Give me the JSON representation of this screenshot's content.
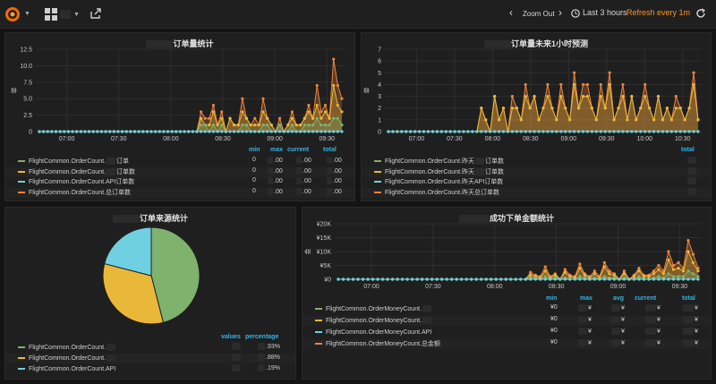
{
  "topbar": {
    "zoom_out_label": "Zoom Out",
    "time_range_label": "Last 3 hours",
    "refresh_label": "Refresh every 1m",
    "prev_label": "‹",
    "next_label": "›"
  },
  "colors": {
    "green": "#7eb26d",
    "yellow": "#eab839",
    "cyan": "#6ed0e0",
    "orange": "#ef843c",
    "accent_blue": "#33b5e5"
  },
  "panels": {
    "order_stats": {
      "title": "订单量统计",
      "ylabel": "单",
      "legend_headers": [
        "min",
        "max",
        "current",
        "total"
      ],
      "legend": [
        {
          "label": "FlightCommon.OrderCount.",
          "label_tail": "订单",
          "min": "0",
          "max": ".00",
          "current": ".00",
          "total": ".00"
        },
        {
          "label": "FlightCommon.OrderCount.",
          "label_tail": "订单数",
          "min": "0",
          "max": ".00",
          "current": ".00",
          "total": ".00"
        },
        {
          "label": "FlightCommon.OrderCount.API订单数",
          "label_tail": "",
          "min": "0",
          "max": ".00",
          "current": ".00",
          "total": ".00"
        },
        {
          "label": "FlightCommon.OrderCount.总订单数",
          "label_tail": "",
          "min": "0",
          "max": ".00",
          "current": ".00",
          "total": ".00"
        }
      ]
    },
    "forecast": {
      "title": "订单量未来1小时预测",
      "ylabel": "单",
      "legend_headers": [
        "total"
      ],
      "legend": [
        {
          "label": "FlightCommon.OrderCount.昨天",
          "label_tail": "订单数"
        },
        {
          "label": "FlightCommon.OrderCount.昨天",
          "label_tail": "订单数"
        },
        {
          "label": "FlightCommon.OrderCount.昨天API订单数",
          "label_tail": ""
        },
        {
          "label": "FlightCommon.OrderCount.昨天总订单数",
          "label_tail": ""
        }
      ]
    },
    "source_pie": {
      "title": "订单来源统计",
      "legend_headers": [
        "values",
        "percentage"
      ],
      "legend": [
        {
          "label": "FlightCommon.OrderCount.",
          "pct": ".93%"
        },
        {
          "label": "FlightCommon.OrderCount.",
          "pct": ".88%"
        },
        {
          "label": "FlightCommon.OrderCount.API",
          "pct": ".19%"
        }
      ]
    },
    "money": {
      "title": "成功下单金额统计",
      "ylabel": "金",
      "legend_headers": [
        "min",
        "max",
        "avg",
        "current",
        "total"
      ],
      "legend": [
        {
          "label": "FlightCommon.OrderMoneyCount.",
          "min": "¥0",
          "max": "¥",
          "avg": "¥",
          "current": "¥",
          "total": "¥"
        },
        {
          "label": "FlightCommon.OrderMoneyCount.",
          "min": "¥0",
          "max": "¥",
          "avg": "¥",
          "current": "¥",
          "total": "¥"
        },
        {
          "label": "FlightCommon.OrderMoneyCount.API",
          "min": "¥0",
          "max": "¥",
          "avg": "¥",
          "current": "¥",
          "total": "¥"
        },
        {
          "label": "FlightCommon.OrderMoneyCount.总金额",
          "min": "¥0",
          "max": "¥",
          "avg": "¥",
          "current": "¥",
          "total": "¥"
        }
      ]
    }
  },
  "chart_data": [
    {
      "id": "order_stats",
      "type": "area",
      "title": "订单量统计",
      "ylabel": "单",
      "ylim": [
        0,
        12.5
      ],
      "yticks": [
        0,
        2.5,
        5.0,
        7.5,
        10.0,
        12.5
      ],
      "ytick_labels": [
        "0",
        "2.5",
        "5.0",
        "7.5",
        "10.0",
        "12.5"
      ],
      "xticks": [
        "07:00",
        "07:30",
        "08:00",
        "08:30",
        "09:00",
        "09:30"
      ],
      "series": [
        {
          "name": "总订单数",
          "color": "#ef843c",
          "values": [
            0,
            0,
            0,
            0,
            0,
            0,
            0,
            0,
            0,
            0,
            0,
            0,
            0,
            0,
            0,
            0,
            0,
            0,
            0,
            0,
            0,
            0,
            0,
            0,
            0,
            0,
            0,
            0,
            0,
            0,
            0,
            0,
            0,
            0,
            0,
            0,
            0,
            0,
            0,
            3,
            2,
            2,
            4,
            1,
            3,
            0,
            2,
            1,
            1,
            5,
            2,
            1,
            2,
            1,
            5,
            2,
            1,
            0,
            2,
            0,
            1,
            3,
            1,
            1,
            2,
            4,
            2,
            7,
            3,
            4,
            2,
            11,
            7,
            5
          ]
        },
        {
          "name": "订单数",
          "color": "#eab839",
          "values": [
            0,
            0,
            0,
            0,
            0,
            0,
            0,
            0,
            0,
            0,
            0,
            0,
            0,
            0,
            0,
            0,
            0,
            0,
            0,
            0,
            0,
            0,
            0,
            0,
            0,
            0,
            0,
            0,
            0,
            0,
            0,
            0,
            0,
            0,
            0,
            0,
            0,
            0,
            0,
            2,
            1,
            1,
            3,
            1,
            2,
            0,
            2,
            1,
            1,
            3,
            2,
            1,
            1,
            1,
            3,
            2,
            1,
            0,
            1,
            0,
            1,
            2,
            1,
            1,
            2,
            3,
            2,
            4,
            2,
            3,
            2,
            7,
            4,
            3
          ]
        },
        {
          "name": "订单",
          "color": "#7eb26d",
          "values": [
            0,
            0,
            0,
            0,
            0,
            0,
            0,
            0,
            0,
            0,
            0,
            0,
            0,
            0,
            0,
            0,
            0,
            0,
            0,
            0,
            0,
            0,
            0,
            0,
            0,
            0,
            0,
            0,
            0,
            0,
            0,
            0,
            0,
            0,
            0,
            0,
            0,
            0,
            0,
            1,
            1,
            0,
            1,
            0,
            1,
            0,
            0,
            0,
            0,
            1,
            1,
            0,
            0,
            0,
            1,
            1,
            0,
            0,
            1,
            0,
            0,
            1,
            0,
            0,
            1,
            1,
            1,
            2,
            1,
            1,
            1,
            2,
            2,
            1
          ]
        },
        {
          "name": "API订单数",
          "color": "#6ed0e0",
          "values": [
            0,
            0,
            0,
            0,
            0,
            0,
            0,
            0,
            0,
            0,
            0,
            0,
            0,
            0,
            0,
            0,
            0,
            0,
            0,
            0,
            0,
            0,
            0,
            0,
            0,
            0,
            0,
            0,
            0,
            0,
            0,
            0,
            0,
            0,
            0,
            0,
            0,
            0,
            0,
            0,
            0,
            0,
            0,
            0,
            0,
            0,
            0,
            0,
            0,
            0,
            0,
            0,
            0,
            0,
            0,
            0,
            0,
            0,
            0,
            0,
            0,
            0,
            0,
            0,
            0,
            0,
            0,
            0,
            0,
            0,
            0,
            0,
            0,
            0
          ]
        }
      ]
    },
    {
      "id": "forecast",
      "type": "area",
      "title": "订单量未来1小时预测",
      "ylabel": "单",
      "ylim": [
        0,
        7
      ],
      "yticks": [
        0,
        1,
        2,
        3,
        4,
        5,
        6,
        7
      ],
      "ytick_labels": [
        "0",
        "1",
        "2",
        "3",
        "4",
        "5",
        "6",
        "7"
      ],
      "xticks": [
        "07:00",
        "07:30",
        "08:00",
        "08:30",
        "09:00",
        "09:30",
        "10:00",
        "10:30"
      ],
      "series": [
        {
          "name": "昨天总订单数",
          "color": "#ef843c",
          "values": [
            0,
            0,
            0,
            0,
            0,
            0,
            0,
            0,
            0,
            0,
            0,
            0,
            0,
            0,
            0,
            0,
            0,
            0,
            0,
            0,
            0,
            2,
            1,
            0,
            3,
            1,
            2,
            0,
            3,
            2,
            1,
            4,
            2,
            3,
            1,
            2,
            4,
            2,
            1,
            4,
            2,
            1,
            5,
            2,
            4,
            4,
            2,
            1,
            4,
            2,
            5,
            1,
            2,
            4,
            1,
            3,
            1,
            2,
            4,
            2,
            1,
            3,
            1,
            2,
            1,
            3,
            2,
            1,
            2,
            5,
            1
          ]
        },
        {
          "name": "昨天订单数",
          "color": "#eab839",
          "values": [
            0,
            0,
            0,
            0,
            0,
            0,
            0,
            0,
            0,
            0,
            0,
            0,
            0,
            0,
            0,
            0,
            0,
            0,
            0,
            0,
            0,
            2,
            1,
            0,
            3,
            1,
            2,
            0,
            2,
            2,
            1,
            3,
            2,
            3,
            1,
            2,
            3,
            2,
            1,
            3,
            2,
            1,
            4,
            2,
            3,
            3,
            2,
            1,
            3,
            2,
            4,
            1,
            2,
            3,
            1,
            3,
            1,
            2,
            3,
            2,
            1,
            3,
            1,
            2,
            1,
            2,
            2,
            1,
            2,
            4,
            1
          ]
        },
        {
          "name": "昨天订单",
          "color": "#7eb26d",
          "values": [
            0,
            0,
            0,
            0,
            0,
            0,
            0,
            0,
            0,
            0,
            0,
            0,
            0,
            0,
            0,
            0,
            0,
            0,
            0,
            0,
            0,
            0,
            0,
            0,
            0,
            0,
            0,
            0,
            0,
            0,
            0,
            0,
            0,
            0,
            0,
            0,
            0,
            0,
            0,
            0,
            0,
            0,
            0,
            0,
            0,
            0,
            0,
            0,
            0,
            0,
            0,
            0,
            0,
            0,
            0,
            0,
            0,
            0,
            0,
            0,
            0,
            0,
            0,
            0,
            0,
            0,
            0,
            0,
            0,
            0,
            0
          ]
        },
        {
          "name": "昨天API订单数",
          "color": "#6ed0e0",
          "values": [
            0,
            0,
            0,
            0,
            0,
            0,
            0,
            0,
            0,
            0,
            0,
            0,
            0,
            0,
            0,
            0,
            0,
            0,
            0,
            0,
            0,
            0,
            0,
            0,
            0,
            0,
            0,
            0,
            0,
            0,
            0,
            0,
            0,
            0,
            0,
            0,
            0,
            0,
            0,
            0,
            0,
            0,
            0,
            0,
            0,
            0,
            0,
            0,
            0,
            0,
            0,
            0,
            0,
            0,
            0,
            0,
            0,
            0,
            0,
            0,
            0,
            0,
            0,
            0,
            0,
            0,
            0,
            0,
            0,
            0,
            0
          ]
        }
      ]
    },
    {
      "id": "source_pie",
      "type": "pie",
      "title": "订单来源统计",
      "labels": [
        "OrderCount.",
        "OrderCount.",
        "OrderCount.API"
      ],
      "values": [
        46,
        33,
        21
      ],
      "colors": [
        "#7eb26d",
        "#eab839",
        "#6ed0e0"
      ]
    },
    {
      "id": "money",
      "type": "area",
      "title": "成功下单金额统计",
      "ylabel": "金",
      "ylim": [
        0,
        20000
      ],
      "yticks": [
        0,
        5000,
        10000,
        15000,
        20000
      ],
      "ytick_labels": [
        "¥0",
        "¥5K",
        "¥10K",
        "¥15K",
        "¥20K"
      ],
      "xticks": [
        "07:00",
        "07:30",
        "08:00",
        "08:30",
        "09:00",
        "09:30"
      ],
      "series": [
        {
          "name": "总金额",
          "color": "#ef843c",
          "values": [
            0,
            0,
            0,
            0,
            0,
            0,
            0,
            0,
            0,
            0,
            0,
            0,
            0,
            0,
            0,
            0,
            0,
            0,
            0,
            0,
            0,
            0,
            0,
            0,
            0,
            0,
            0,
            0,
            0,
            0,
            0,
            0,
            0,
            0,
            0,
            0,
            0,
            0,
            0,
            2500,
            1500,
            1000,
            4500,
            1000,
            2000,
            0,
            3500,
            1500,
            1000,
            5500,
            2000,
            1000,
            3000,
            1000,
            6000,
            3000,
            2000,
            0,
            3000,
            0,
            1500,
            4000,
            1500,
            1500,
            3000,
            5000,
            3000,
            10000,
            5000,
            6000,
            4000,
            14000,
            9000,
            4000
          ]
        },
        {
          "name": "",
          "color": "#eab839",
          "values": [
            0,
            0,
            0,
            0,
            0,
            0,
            0,
            0,
            0,
            0,
            0,
            0,
            0,
            0,
            0,
            0,
            0,
            0,
            0,
            0,
            0,
            0,
            0,
            0,
            0,
            0,
            0,
            0,
            0,
            0,
            0,
            0,
            0,
            0,
            0,
            0,
            0,
            0,
            0,
            1500,
            1000,
            500,
            3000,
            500,
            1500,
            0,
            2500,
            1000,
            500,
            4000,
            1500,
            500,
            2000,
            500,
            4500,
            2000,
            1500,
            0,
            2000,
            0,
            1000,
            3000,
            1000,
            1000,
            2000,
            3500,
            2000,
            7000,
            3500,
            4000,
            3000,
            10000,
            6000,
            3000
          ]
        },
        {
          "name": "",
          "color": "#7eb26d",
          "values": [
            0,
            0,
            0,
            0,
            0,
            0,
            0,
            0,
            0,
            0,
            0,
            0,
            0,
            0,
            0,
            0,
            0,
            0,
            0,
            0,
            0,
            0,
            0,
            0,
            0,
            0,
            0,
            0,
            0,
            0,
            0,
            0,
            0,
            0,
            0,
            0,
            0,
            0,
            0,
            500,
            500,
            0,
            1000,
            0,
            500,
            0,
            500,
            0,
            0,
            1000,
            500,
            0,
            500,
            0,
            1000,
            500,
            500,
            0,
            500,
            0,
            0,
            1000,
            0,
            0,
            500,
            1000,
            500,
            2000,
            1000,
            1000,
            1000,
            3000,
            2000,
            1000
          ]
        },
        {
          "name": "API",
          "color": "#6ed0e0",
          "values": [
            0,
            0,
            0,
            0,
            0,
            0,
            0,
            0,
            0,
            0,
            0,
            0,
            0,
            0,
            0,
            0,
            0,
            0,
            0,
            0,
            0,
            0,
            0,
            0,
            0,
            0,
            0,
            0,
            0,
            0,
            0,
            0,
            0,
            0,
            0,
            0,
            0,
            0,
            0,
            0,
            0,
            0,
            0,
            0,
            0,
            0,
            0,
            0,
            0,
            0,
            0,
            0,
            0,
            0,
            0,
            0,
            0,
            0,
            0,
            0,
            0,
            0,
            0,
            0,
            0,
            0,
            0,
            0,
            0,
            0,
            0,
            0,
            0,
            0
          ]
        }
      ]
    }
  ]
}
